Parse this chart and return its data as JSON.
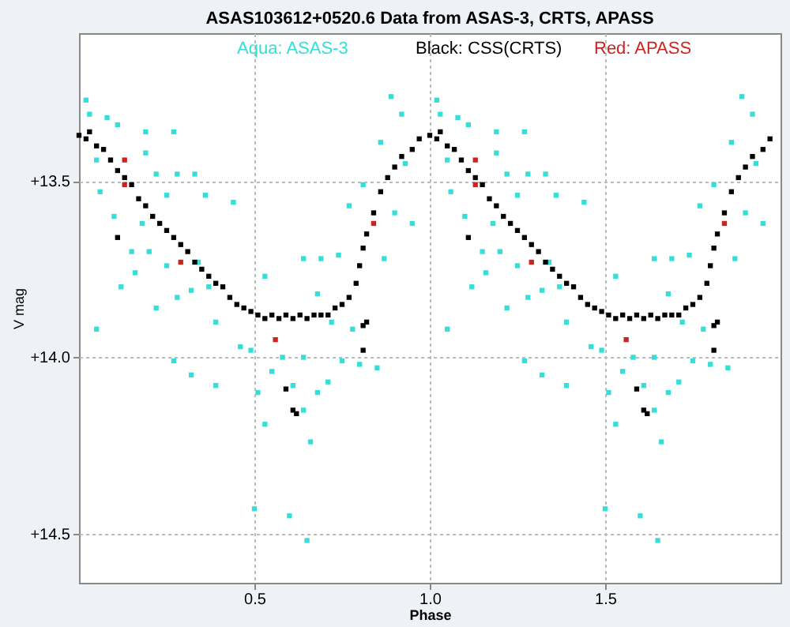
{
  "chart_data": {
    "type": "scatter",
    "title": "ASAS103612+0520.6 Data from ASAS-3, CRTS, APASS",
    "xlabel": "Phase",
    "ylabel": "V mag",
    "xlim": [
      0,
      2
    ],
    "ylim": [
      14.64,
      13.08
    ],
    "xticks": [
      0.5,
      {
        "value": 1,
        "label": "1.0"
      },
      1.5
    ],
    "yticks": [
      {
        "value": 13.5,
        "label": "+13.5"
      },
      {
        "value": 14,
        "label": "+14.0"
      },
      {
        "value": 14.5,
        "label": "+14.5"
      }
    ],
    "grid": true,
    "legend": "top",
    "marker": "square",
    "series": [
      {
        "name": "Aqua: ASAS-3",
        "color": "#33e0d8",
        "x": [
          0.02,
          0.03,
          0.08,
          0.11,
          0.19,
          0.27,
          0.05,
          0.06,
          0.1,
          0.12,
          0.05,
          0.15,
          0.19,
          0.22,
          0.25,
          0.28,
          0.33,
          0.18,
          0.2,
          0.25,
          0.16,
          0.22,
          0.28,
          0.32,
          0.36,
          0.44,
          0.34,
          0.37,
          0.39,
          0.27,
          0.32,
          0.39,
          0.46,
          0.49,
          0.51,
          0.53,
          0.5,
          0.6,
          0.65,
          0.53,
          0.64,
          0.69,
          0.74,
          0.68,
          0.72,
          0.58,
          0.64,
          0.55,
          0.61,
          0.68,
          0.71,
          0.66,
          0.64,
          0.75,
          0.8,
          0.85,
          0.78,
          0.77,
          0.81,
          0.87,
          0.9,
          0.86,
          0.89,
          0.92,
          0.95,
          0.93,
          1.02,
          1.03,
          1.08,
          1.11,
          1.19,
          1.27,
          1.05,
          1.06,
          1.1,
          1.12,
          1.05,
          1.15,
          1.19,
          1.22,
          1.25,
          1.28,
          1.33,
          1.18,
          1.2,
          1.25,
          1.16,
          1.22,
          1.28,
          1.32,
          1.36,
          1.44,
          1.34,
          1.37,
          1.39,
          1.27,
          1.32,
          1.39,
          1.46,
          1.49,
          1.51,
          1.53,
          1.5,
          1.6,
          1.65,
          1.53,
          1.64,
          1.69,
          1.74,
          1.68,
          1.72,
          1.58,
          1.64,
          1.55,
          1.61,
          1.68,
          1.71,
          1.66,
          1.64,
          1.75,
          1.8,
          1.85,
          1.78,
          1.77,
          1.81,
          1.87,
          1.9,
          1.86,
          1.89,
          1.92,
          1.95,
          1.93
        ],
        "values": [
          13.27,
          13.31,
          13.32,
          13.34,
          13.36,
          13.36,
          13.44,
          13.53,
          13.6,
          13.8,
          13.92,
          13.7,
          13.42,
          13.48,
          13.54,
          13.48,
          13.48,
          13.62,
          13.7,
          13.74,
          13.76,
          13.86,
          13.83,
          13.81,
          13.54,
          13.56,
          13.73,
          13.8,
          13.9,
          14.01,
          14.05,
          14.08,
          13.97,
          13.98,
          14.1,
          14.19,
          14.43,
          14.45,
          14.52,
          13.77,
          13.72,
          13.72,
          13.71,
          13.82,
          13.9,
          14.0,
          14.0,
          14.04,
          14.08,
          14.1,
          14.07,
          14.24,
          14.15,
          14.01,
          14.02,
          14.03,
          13.92,
          13.57,
          13.51,
          13.72,
          13.59,
          13.39,
          13.26,
          13.31,
          13.62,
          13.45,
          13.27,
          13.31,
          13.32,
          13.34,
          13.36,
          13.36,
          13.44,
          13.53,
          13.6,
          13.8,
          13.92,
          13.7,
          13.42,
          13.48,
          13.54,
          13.48,
          13.48,
          13.62,
          13.7,
          13.74,
          13.76,
          13.86,
          13.83,
          13.81,
          13.54,
          13.56,
          13.73,
          13.8,
          13.9,
          14.01,
          14.05,
          14.08,
          13.97,
          13.98,
          14.1,
          14.19,
          14.43,
          14.45,
          14.52,
          13.77,
          13.72,
          13.72,
          13.71,
          13.82,
          13.9,
          14.0,
          14.0,
          14.04,
          14.08,
          14.1,
          14.07,
          14.24,
          14.15,
          14.01,
          14.02,
          14.03,
          13.92,
          13.57,
          13.51,
          13.72,
          13.59,
          13.39,
          13.26,
          13.31,
          13.62,
          13.45
        ]
      },
      {
        "name": "Black: CSS(CRTS)",
        "color": "#000000",
        "x": [
          0.0,
          0.02,
          0.03,
          0.05,
          0.07,
          0.09,
          0.11,
          0.13,
          0.15,
          0.17,
          0.19,
          0.21,
          0.23,
          0.25,
          0.27,
          0.29,
          0.31,
          0.33,
          0.35,
          0.37,
          0.39,
          0.41,
          0.43,
          0.45,
          0.47,
          0.49,
          0.51,
          0.53,
          0.55,
          0.57,
          0.59,
          0.61,
          0.63,
          0.65,
          0.67,
          0.69,
          0.71,
          0.73,
          0.75,
          0.77,
          0.79,
          0.8,
          0.81,
          0.82,
          0.84,
          0.86,
          0.88,
          0.9,
          0.92,
          0.95,
          0.97,
          0.11,
          0.59,
          0.61,
          0.62,
          0.81,
          0.81,
          0.82,
          1.0,
          1.02,
          1.03,
          1.05,
          1.07,
          1.09,
          1.11,
          1.13,
          1.15,
          1.17,
          1.19,
          1.21,
          1.23,
          1.25,
          1.27,
          1.29,
          1.31,
          1.33,
          1.35,
          1.37,
          1.39,
          1.41,
          1.43,
          1.45,
          1.47,
          1.49,
          1.51,
          1.53,
          1.55,
          1.57,
          1.59,
          1.61,
          1.63,
          1.65,
          1.67,
          1.69,
          1.71,
          1.73,
          1.75,
          1.77,
          1.79,
          1.8,
          1.81,
          1.82,
          1.84,
          1.86,
          1.88,
          1.9,
          1.92,
          1.95,
          1.97,
          1.11,
          1.59,
          1.61,
          1.62,
          1.81,
          1.81,
          1.82
        ],
        "values": [
          13.37,
          13.38,
          13.36,
          13.4,
          13.41,
          13.44,
          13.47,
          13.49,
          13.51,
          13.55,
          13.57,
          13.6,
          13.62,
          13.64,
          13.66,
          13.68,
          13.7,
          13.73,
          13.75,
          13.77,
          13.79,
          13.8,
          13.83,
          13.85,
          13.86,
          13.87,
          13.88,
          13.89,
          13.88,
          13.89,
          13.88,
          13.89,
          13.88,
          13.89,
          13.88,
          13.88,
          13.88,
          13.86,
          13.85,
          13.83,
          13.79,
          13.74,
          13.69,
          13.65,
          13.59,
          13.53,
          13.49,
          13.46,
          13.43,
          13.41,
          13.38,
          13.66,
          14.09,
          14.15,
          14.16,
          13.98,
          13.91,
          13.9,
          13.37,
          13.38,
          13.36,
          13.4,
          13.41,
          13.44,
          13.47,
          13.49,
          13.51,
          13.55,
          13.57,
          13.6,
          13.62,
          13.64,
          13.66,
          13.68,
          13.7,
          13.73,
          13.75,
          13.77,
          13.79,
          13.8,
          13.83,
          13.85,
          13.86,
          13.87,
          13.88,
          13.89,
          13.88,
          13.89,
          13.88,
          13.89,
          13.88,
          13.89,
          13.88,
          13.88,
          13.88,
          13.86,
          13.85,
          13.83,
          13.79,
          13.74,
          13.69,
          13.65,
          13.59,
          13.53,
          13.49,
          13.46,
          13.43,
          13.41,
          13.38,
          13.66,
          14.09,
          14.15,
          14.16,
          13.98,
          13.91,
          13.9
        ]
      },
      {
        "name": "Red: APASS",
        "color": "#cc2222",
        "x": [
          0.13,
          0.13,
          0.29,
          0.56,
          0.84,
          1.13,
          1.13,
          1.29,
          1.56,
          1.84
        ],
        "values": [
          13.51,
          13.44,
          13.73,
          13.95,
          13.62,
          13.51,
          13.44,
          13.73,
          13.95,
          13.62
        ]
      }
    ]
  }
}
